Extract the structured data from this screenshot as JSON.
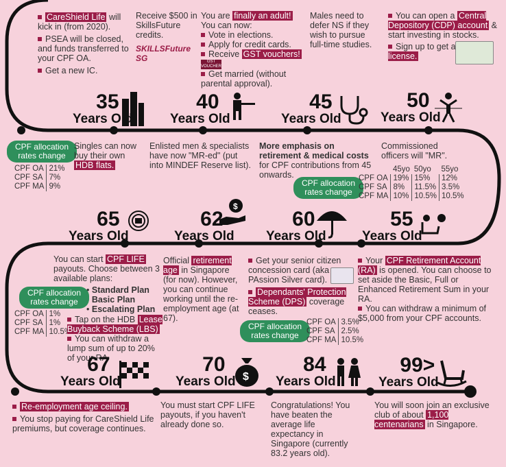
{
  "colors": {
    "background": "#f7d2dc",
    "accent": "#9b1d48",
    "badge": "#2f8f5b",
    "track": "#111111"
  },
  "top": {
    "col1": {
      "item1_hl": "CareShield Life",
      "item1_rest": " will kick in (from 2020).",
      "item2": "PSEA will be closed, and funds transferred to your CPF OA.",
      "item3": "Get a new IC."
    },
    "col2": {
      "text": "Receive $500 in SkillsFuture credits.",
      "logo": "SKILLSFuture SG"
    },
    "col3": {
      "line1_pre": "You are ",
      "line1_hl": "finally an adult!",
      "line2": "You can now:",
      "b1": "Vote in elections.",
      "b2": "Apply for credit cards.",
      "b3_pre": "Receive ",
      "b3_hl": "GST vouchers!",
      "b3_img": "GST VOUCHER",
      "b4": "Get married (without parental approval)."
    },
    "col4": {
      "text": "Males need to defer NS if they wish to pursue full-time studies."
    },
    "col5": {
      "b1_pre": "You can open a ",
      "b1_hl": "Central Depository (CDP) account",
      "b1_rest": " & start investing in stocks.",
      "b2_pre": "Sign up to get a ",
      "b2_hl": "driving license."
    }
  },
  "row1": [
    {
      "age": "35",
      "yo": "Years Old",
      "icon": "building-icon"
    },
    {
      "age": "40",
      "yo": "Years Old",
      "icon": "soldier-icon"
    },
    {
      "age": "45",
      "yo": "Years Old",
      "icon": "stethoscope-icon"
    },
    {
      "age": "50",
      "yo": "Years Old",
      "icon": "finish-line-icon"
    }
  ],
  "mid1": {
    "badge1": "CPF allocation rates change",
    "rates1": [
      [
        "CPF OA",
        "21%"
      ],
      [
        "CPF SA",
        "7%"
      ],
      [
        "CPF MA",
        "9%"
      ]
    ],
    "singles_pre": "Singles can now buy their own ",
    "singles_hl": "HDB flats.",
    "enlisted": "Enlisted men & specialists have now \"MR-ed\" (put into MINDEF Reserve list).",
    "emphasis_b1": "More emphasis on retirement & medical costs",
    "emphasis_rest": " for CPF contributions from 45 onwards.",
    "commissioned": "Commissioned officers will \"MR\".",
    "badge2": "CPF allocation rates change",
    "rates2_head": [
      "",
      "45yo",
      "50yo",
      "55yo"
    ],
    "rates2": [
      [
        "CPF OA",
        "19%",
        "15%",
        "12%"
      ],
      [
        "CPF SA",
        "8%",
        "11.5%",
        "3.5%"
      ],
      [
        "CPF MA",
        "10%",
        "10.5%",
        "10.5%"
      ]
    ]
  },
  "row2": [
    {
      "age": "65",
      "yo": "Years Old",
      "icon": "cpf-emblem-icon"
    },
    {
      "age": "62",
      "yo": "Years Old",
      "icon": "money-hand-icon"
    },
    {
      "age": "60",
      "yo": "Years Old",
      "icon": "umbrella-icon"
    },
    {
      "age": "55",
      "yo": "Years Old",
      "icon": "retiree-icon"
    }
  ],
  "mid2": {
    "life_pre": "You can start ",
    "life_hl": "CPF LIFE",
    "life_rest": " payouts. Choose between 3 available plans:",
    "plans": [
      "Standard Plan",
      "Basic Plan",
      "Escalating Plan"
    ],
    "badge3": "CPF allocation rates change",
    "rates3": [
      [
        "CPF OA",
        "1%"
      ],
      [
        "CPF SA",
        "1%"
      ],
      [
        "CPF MA",
        "10.5%"
      ]
    ],
    "lbs_pre": "Tap on the HDB ",
    "lbs_hl": "Lease Buyback Scheme (LBS)",
    "lump": "You can withdraw a lump sum of up to 20% of your RA",
    "ret_pre": "Official ",
    "ret_hl": "retirement age",
    "ret_rest": " in Singapore (for now). However, you can continue working until the re-employment age (at 67).",
    "senior": "Get your senior citizen concession card (aka PAssion Silver card).",
    "dps_hl": "Dependants' Protection Scheme (DPS)",
    "dps_rest": " coverage ceases.",
    "badge4": "CPF allocation rates change",
    "rates4": [
      [
        "CPF OA",
        "3.5%"
      ],
      [
        "CPF SA",
        "2.5%"
      ],
      [
        "CPF MA",
        "10.5%"
      ]
    ],
    "ra_pre": "Your ",
    "ra_hl": "CPF Retirement Account (RA)",
    "ra_rest": " is opened. You can choose to set aside the Basic, Full or Enhanced Retirement Sum in your RA.",
    "withdraw": "You can withdraw a minimum of $5,000 from your CPF accounts."
  },
  "row3": [
    {
      "age": "67",
      "yo": "Years Old",
      "icon": "checkered-flag-icon"
    },
    {
      "age": "70",
      "yo": "Years Old",
      "icon": "money-bag-icon"
    },
    {
      "age": "84",
      "yo": "Years Old",
      "icon": "elderly-couple-icon"
    },
    {
      "age": "99>",
      "yo": "Years Old",
      "icon": "rocking-chair-icon"
    }
  ],
  "bottom": {
    "reemp_hl": "Re-employment age ceiling.",
    "careshield": "You stop paying for CareShield Life premiums, but coverage continues.",
    "mustlife": "You must start CPF LIFE payouts, if you haven't already done so.",
    "congrats": "Congratulations! You have beaten the average life expectancy in Singapore (currently 83.2 years old).",
    "club_pre": "You will soon join an exclusive club of about ",
    "club_hl": "1,100 centenarians",
    "club_rest": " in Singapore."
  }
}
